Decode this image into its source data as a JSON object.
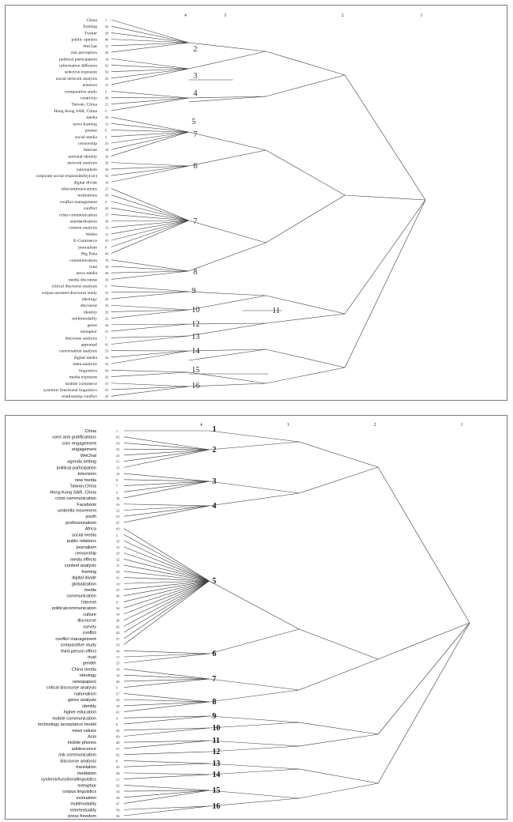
{
  "top": {
    "levels": [
      "4",
      "3",
      "2",
      "1"
    ],
    "terms": [
      {
        "label": "China",
        "num": "1"
      },
      {
        "label": "framing",
        "num": "44"
      },
      {
        "label": "Twitter",
        "num": "28"
      },
      {
        "label": "public opinion",
        "num": "40"
      },
      {
        "label": "WeChat",
        "num": "15"
      },
      {
        "label": "risk perception",
        "num": "46"
      },
      {
        "label": "political participation",
        "num": "14"
      },
      {
        "label": "information diffusion",
        "num": "42"
      },
      {
        "label": "selective exposure",
        "num": "50"
      },
      {
        "label": "social network analysis",
        "num": "25"
      },
      {
        "label": "emotion",
        "num": "31"
      },
      {
        "label": "comparative study",
        "num": "3"
      },
      {
        "label": "creativity",
        "num": "48"
      },
      {
        "label": "Taiwan, China",
        "num": "21"
      },
      {
        "label": "Hong Kong SAR, China",
        "num": "5"
      },
      {
        "label": "media",
        "num": "36"
      },
      {
        "label": "news framing",
        "num": "13"
      },
      {
        "label": "protest",
        "num": "6"
      },
      {
        "label": "social media",
        "num": "2"
      },
      {
        "label": "censorship",
        "num": "23"
      },
      {
        "label": "Internet",
        "num": "18"
      },
      {
        "label": "national identity",
        "num": "24"
      },
      {
        "label": "network analysis",
        "num": "26"
      },
      {
        "label": "nationalism",
        "num": "30"
      },
      {
        "label": "corporate social responsibility(csr)",
        "num": "34"
      },
      {
        "label": "digital divide",
        "num": "10"
      },
      {
        "label": "telecommunications",
        "num": "27"
      },
      {
        "label": "institutions",
        "num": "43"
      },
      {
        "label": "conflict management",
        "num": "9"
      },
      {
        "label": "conflict",
        "num": "20"
      },
      {
        "label": "crisis communication",
        "num": "17"
      },
      {
        "label": "standardization",
        "num": "38"
      },
      {
        "label": "content analysis",
        "num": "12"
      },
      {
        "label": "Weibo",
        "num": "11"
      },
      {
        "label": "E-Commerce",
        "num": "35"
      },
      {
        "label": "journalism",
        "num": "8"
      },
      {
        "label": "Big Data",
        "num": "40"
      },
      {
        "label": "communication",
        "num": "19"
      },
      {
        "label": "trust",
        "num": "16"
      },
      {
        "label": "news media",
        "num": "46"
      },
      {
        "label": "media discourse",
        "num": "39"
      },
      {
        "label": "critical discourse analysis",
        "num": "4"
      },
      {
        "label": "corpus-assisted discourse study",
        "num": "52"
      },
      {
        "label": "ideology",
        "num": "45"
      },
      {
        "label": "discourse",
        "num": "33"
      },
      {
        "label": "identity",
        "num": "29"
      },
      {
        "label": "multimodality",
        "num": "22"
      },
      {
        "label": "genre",
        "num": "34"
      },
      {
        "label": "metaphor",
        "num": "51"
      },
      {
        "label": "discourse analysis",
        "num": "7"
      },
      {
        "label": "appraisal",
        "num": "41"
      },
      {
        "label": "conversation analysis",
        "num": "53"
      },
      {
        "label": "digital media",
        "num": "54"
      },
      {
        "label": "meta-analysis",
        "num": "32"
      },
      {
        "label": "linguistics",
        "num": "49"
      },
      {
        "label": "media exposure",
        "num": "20"
      },
      {
        "label": "mobile commerce",
        "num": "37"
      },
      {
        "label": "systemic functional linguistics",
        "num": "55"
      },
      {
        "label": "relationship conflict",
        "num": "45"
      }
    ],
    "clusters": [
      "2",
      "3",
      "4",
      "5",
      "7",
      "6",
      "7",
      "8",
      "9",
      "10",
      "11",
      "12",
      "13",
      "14",
      "15",
      "16"
    ]
  },
  "bottom": {
    "levels": [
      "4",
      "3",
      "2",
      "1"
    ],
    "terms": [
      {
        "label": "China",
        "num": "1"
      },
      {
        "label": "uses and gratifications",
        "num": "63"
      },
      {
        "label": "civic engagement",
        "num": "50"
      },
      {
        "label": "engagement",
        "num": "52"
      },
      {
        "label": "WeChat",
        "num": "23"
      },
      {
        "label": "agenda setting",
        "num": "51"
      },
      {
        "label": "political participation",
        "num": "15"
      },
      {
        "label": "television",
        "num": "14"
      },
      {
        "label": "new media",
        "num": "8"
      },
      {
        "label": "Taiwan,China",
        "num": "7"
      },
      {
        "label": "Hong Kong SAR, China",
        "num": "3"
      },
      {
        "label": "crisis   communication",
        "num": "16"
      },
      {
        "label": "Facebook",
        "num": "33"
      },
      {
        "label": "umbrella movement",
        "num": "22"
      },
      {
        "label": "youth",
        "num": "55"
      },
      {
        "label": "professionalism",
        "num": "47"
      },
      {
        "label": "Africa",
        "num": "43"
      },
      {
        "label": "social media",
        "num": "2"
      },
      {
        "label": "public relations",
        "num": "12"
      },
      {
        "label": "journalism",
        "num": "13"
      },
      {
        "label": "censorship",
        "num": "29"
      },
      {
        "label": "media  effects",
        "num": "32"
      },
      {
        "label": "content analysis",
        "num": "11"
      },
      {
        "label": "framing",
        "num": "20"
      },
      {
        "label": "digital divide",
        "num": "41"
      },
      {
        "label": "globalization",
        "num": "10"
      },
      {
        "label": "media",
        "num": "27"
      },
      {
        "label": "communication",
        "num": "44"
      },
      {
        "label": "Internet",
        "num": "9"
      },
      {
        "label": "politicalcommunication",
        "num": "34"
      },
      {
        "label": "culture",
        "num": "19"
      },
      {
        "label": "discourse",
        "num": "36"
      },
      {
        "label": "survey",
        "num": "42"
      },
      {
        "label": "conflict",
        "num": "45"
      },
      {
        "label": "conflict management",
        "num": "37"
      },
      {
        "label": "comparative study",
        "num": "59"
      },
      {
        "label": "third-person effect",
        "num": "30"
      },
      {
        "label": "trust",
        "num": "17"
      },
      {
        "label": "gender",
        "num": "25"
      },
      {
        "label": "China media",
        "num": "39"
      },
      {
        "label": "ideology",
        "num": "14"
      },
      {
        "label": "newspapers",
        "num": "28"
      },
      {
        "label": "critical discourse analysis",
        "num": "5"
      },
      {
        "label": "nationalism",
        "num": "57"
      },
      {
        "label": "genre analysis",
        "num": "24"
      },
      {
        "label": "identity",
        "num": "18"
      },
      {
        "label": "higher education",
        "num": "61"
      },
      {
        "label": "mobile communication",
        "num": "4"
      },
      {
        "label": "technology  acceptance model",
        "num": "6"
      },
      {
        "label": "news values",
        "num": "56"
      },
      {
        "label": "Asia",
        "num": "60"
      },
      {
        "label": "mobile phones",
        "num": "40"
      },
      {
        "label": "adolescence",
        "num": "57"
      },
      {
        "label": "risk communication",
        "num": "62"
      },
      {
        "label": "discourse analysis",
        "num": "6"
      },
      {
        "label": "translation",
        "num": "45"
      },
      {
        "label": "mediation",
        "num": "48"
      },
      {
        "label": "systemicfunctionallinguistics",
        "num": "21"
      },
      {
        "label": "metaphor",
        "num": "26"
      },
      {
        "label": "corpus  linguistics",
        "num": "54"
      },
      {
        "label": "evaluation",
        "num": "38"
      },
      {
        "label": "multimodality",
        "num": "47"
      },
      {
        "label": "intertextuality",
        "num": "58"
      },
      {
        "label": "press freedom",
        "num": "36"
      }
    ],
    "clusters": [
      "1",
      "2",
      "3",
      "4",
      "5",
      "6",
      "7",
      "8",
      "9",
      "10",
      "11",
      "12",
      "13",
      "14",
      "15",
      "16"
    ]
  }
}
